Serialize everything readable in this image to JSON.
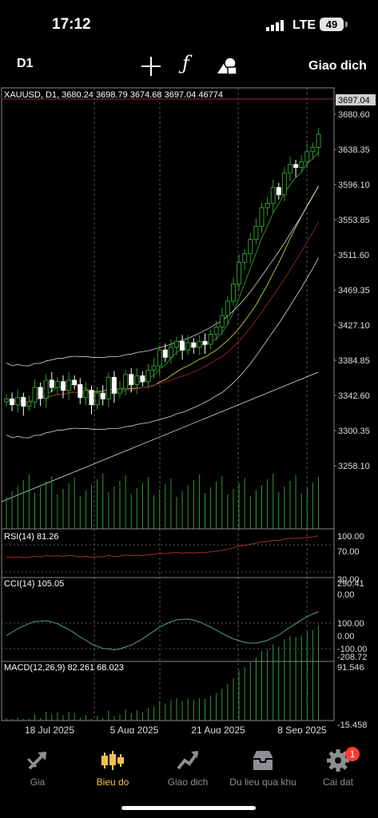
{
  "status_bar": {
    "time": "17:12",
    "network": "LTE",
    "battery": "49"
  },
  "toolbar": {
    "period": "D1",
    "crosshair_icon": "crosshair-icon",
    "indicators_icon": "function-icon",
    "objects_icon": "shapes-icon",
    "trade_label": "Giao dich"
  },
  "chart": {
    "info": "XAUUSD, D1, 3680.24 3698.79 3674.68 3697.04 46774",
    "current_price": "3697.04",
    "price_labels": [
      "3680.60",
      "3638.35",
      "3596.10",
      "3553.85",
      "3511.60",
      "3469.35",
      "3427.10",
      "3384.85",
      "3342.60",
      "3300.35",
      "3258.10"
    ],
    "date_labels": [
      "18 Jul 2025",
      "5 Aug 2025",
      "21 Aug 2025",
      "8 Sep 2025"
    ],
    "rsi": {
      "label": "RSI(14) 81.26",
      "levels": [
        "100.00",
        "70.00",
        "30.00",
        "0.00"
      ]
    },
    "cci": {
      "label": "CCI(14) 105.05",
      "levels": [
        "290.41",
        "100.00",
        "0.00",
        "-100.00",
        "-208.72"
      ]
    },
    "macd": {
      "label": "MACD(12,26,9) 82.261 68.023",
      "levels": [
        "91.546",
        "-15.458"
      ]
    },
    "colors": {
      "bull": "#2e9a2e",
      "bear": "#ffffff",
      "grid": "#777777",
      "ma_fast": "#2e8b2e",
      "ma_slow": "#8b2020",
      "bands": "#d8d8d8"
    }
  },
  "tabs": [
    {
      "label": "Gia",
      "icon": "quotes-icon",
      "active": false
    },
    {
      "label": "Bieu do",
      "icon": "chart-candles-icon",
      "active": true
    },
    {
      "label": "Giao dich",
      "icon": "trade-icon",
      "active": false
    },
    {
      "label": "Du lieu qua khu",
      "icon": "history-icon",
      "active": false
    },
    {
      "label": "Cai dat",
      "icon": "settings-icon",
      "active": false,
      "badge": "1"
    }
  ]
}
